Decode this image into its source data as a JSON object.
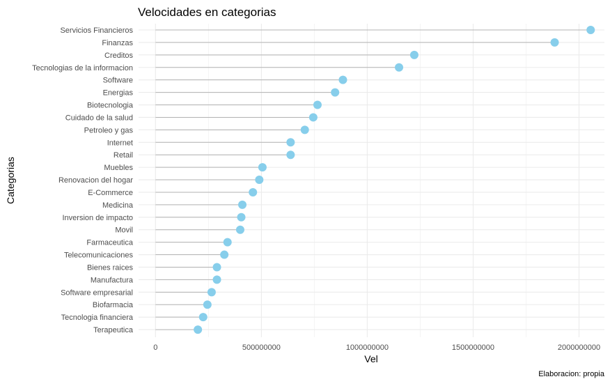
{
  "chart_data": {
    "type": "lollipop",
    "title": "Velocidades en categorias",
    "xlabel": "Vel",
    "ylabel": "Categorias",
    "caption": "Elaboracion: propia",
    "xlim": [
      -80000000,
      2120000000
    ],
    "xticks": [
      0,
      500000000,
      1000000000,
      1500000000,
      2000000000
    ],
    "xtick_labels": [
      "0",
      "500000000",
      "1000000000",
      "1500000000",
      "2000000000"
    ],
    "grid": true,
    "point_color": "#87ceeb",
    "segment_color": "#b3b3b3",
    "categories": [
      "Servicios Financieros",
      "Finanzas",
      "Creditos",
      "Tecnologias de la informacion",
      "Software",
      "Energias",
      "Biotecnologia",
      "Cuidado de la salud",
      "Petroleo y gas",
      "Internet",
      "Retail",
      "Muebles",
      "Renovacion del hogar",
      "E-Commerce",
      "Medicina",
      "Inversion de impacto",
      "Movil",
      "Farmaceutica",
      "Telecomunicaciones",
      "Bienes raices",
      "Manufactura",
      "Software empresarial",
      "Biofarmacia",
      "Tecnologia financiera",
      "Terapeutica"
    ],
    "values": [
      2055000000,
      1885000000,
      1222000000,
      1150000000,
      885000000,
      848000000,
      765000000,
      745000000,
      705000000,
      638000000,
      638000000,
      505000000,
      490000000,
      460000000,
      410000000,
      405000000,
      400000000,
      340000000,
      325000000,
      290000000,
      290000000,
      265000000,
      245000000,
      225000000,
      200000000
    ]
  }
}
